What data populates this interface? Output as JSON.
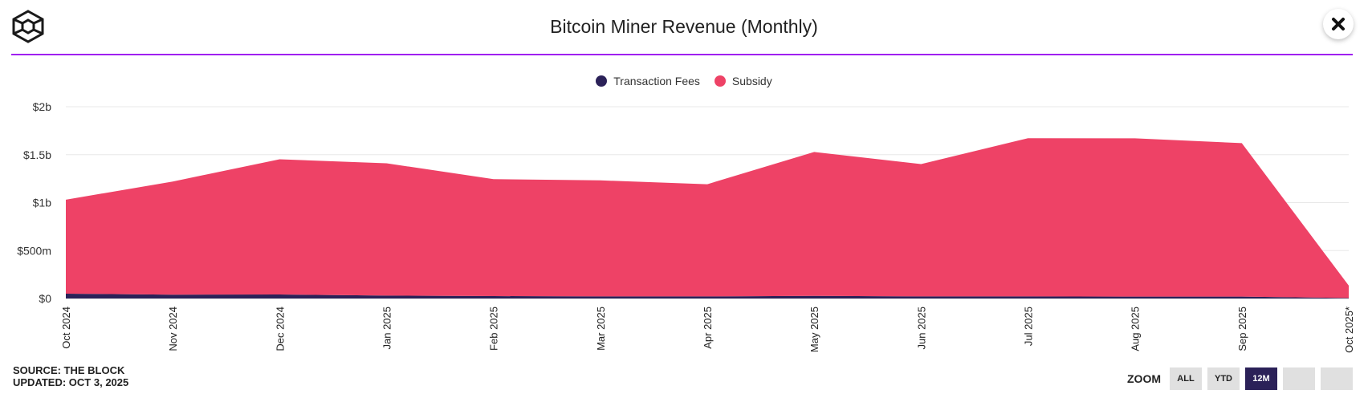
{
  "header": {
    "title": "Bitcoin Miner Revenue (Monthly)"
  },
  "legend": [
    {
      "label": "Transaction Fees",
      "color": "#2b2158"
    },
    {
      "label": "Subsidy",
      "color": "#ee4266"
    }
  ],
  "footer": {
    "source": "SOURCE: THE BLOCK",
    "updated": "UPDATED: OCT 3, 2025"
  },
  "zoom": {
    "label": "ZOOM",
    "buttons": [
      {
        "label": "ALL",
        "active": false
      },
      {
        "label": "YTD",
        "active": false
      },
      {
        "label": "12M",
        "active": true
      },
      {
        "label": "",
        "active": false
      },
      {
        "label": "",
        "active": false
      }
    ]
  },
  "chart_data": {
    "type": "area",
    "stacked": true,
    "categories": [
      "Oct 2024",
      "Nov 2024",
      "Dec 2024",
      "Jan 2025",
      "Feb 2025",
      "Mar 2025",
      "Apr 2025",
      "May 2025",
      "Jun 2025",
      "Jul 2025",
      "Aug 2025",
      "Sep 2025",
      "Oct 2025*"
    ],
    "series": [
      {
        "name": "Transaction Fees",
        "color": "#2b2158",
        "values": [
          50000000,
          40000000,
          42000000,
          30000000,
          25000000,
          22000000,
          22000000,
          28000000,
          22000000,
          22000000,
          20000000,
          20000000,
          5000000
        ]
      },
      {
        "name": "Subsidy",
        "color": "#ee4266",
        "values": [
          980000000,
          1180000000,
          1410000000,
          1380000000,
          1220000000,
          1210000000,
          1170000000,
          1500000000,
          1380000000,
          1650000000,
          1650000000,
          1600000000,
          130000000
        ]
      }
    ],
    "y_ticks": [
      {
        "value": 0,
        "label": "$0"
      },
      {
        "value": 500000000,
        "label": "$500m"
      },
      {
        "value": 1000000000,
        "label": "$1b"
      },
      {
        "value": 1500000000,
        "label": "$1.5b"
      },
      {
        "value": 2000000000,
        "label": "$2b"
      }
    ],
    "ylim": [
      0,
      2000000000
    ],
    "grid": true,
    "legend_position": "top-center"
  }
}
